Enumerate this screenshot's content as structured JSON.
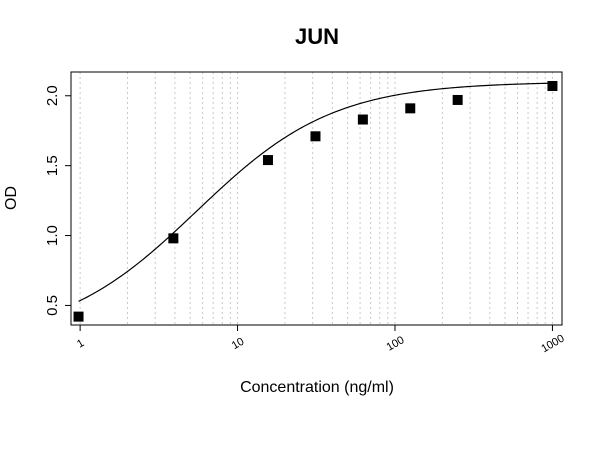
{
  "chart_data": {
    "type": "scatter",
    "title": "JUN",
    "xlabel": "Concentration (ng/ml)",
    "ylabel": "OD",
    "x_scale": "log",
    "xlim": [
      0.875,
      1150
    ],
    "ylim": [
      0.36,
      2.17
    ],
    "x_ticks": [
      1,
      10,
      100,
      1000
    ],
    "x_tick_labels": [
      "1",
      "10",
      "100",
      "1000"
    ],
    "y_ticks": [
      0.5,
      1.0,
      1.5,
      2.0
    ],
    "y_tick_labels": [
      "0.5",
      "1.0",
      "1.5",
      "2.0"
    ],
    "grid": "vertical dotted at log minor ticks",
    "series": [
      {
        "x": [
          0.977,
          3.91,
          15.6,
          31.25,
          62.5,
          125,
          250,
          1000
        ],
        "y": [
          0.42,
          0.98,
          1.54,
          1.71,
          1.83,
          1.91,
          1.97,
          2.07
        ],
        "marker": "square",
        "color": "#000000"
      }
    ],
    "fit_curve": {
      "type": "4PL",
      "min": 0.25,
      "max": 2.1,
      "ec50": 5.5,
      "hill": 1.0,
      "color": "#000000"
    }
  }
}
